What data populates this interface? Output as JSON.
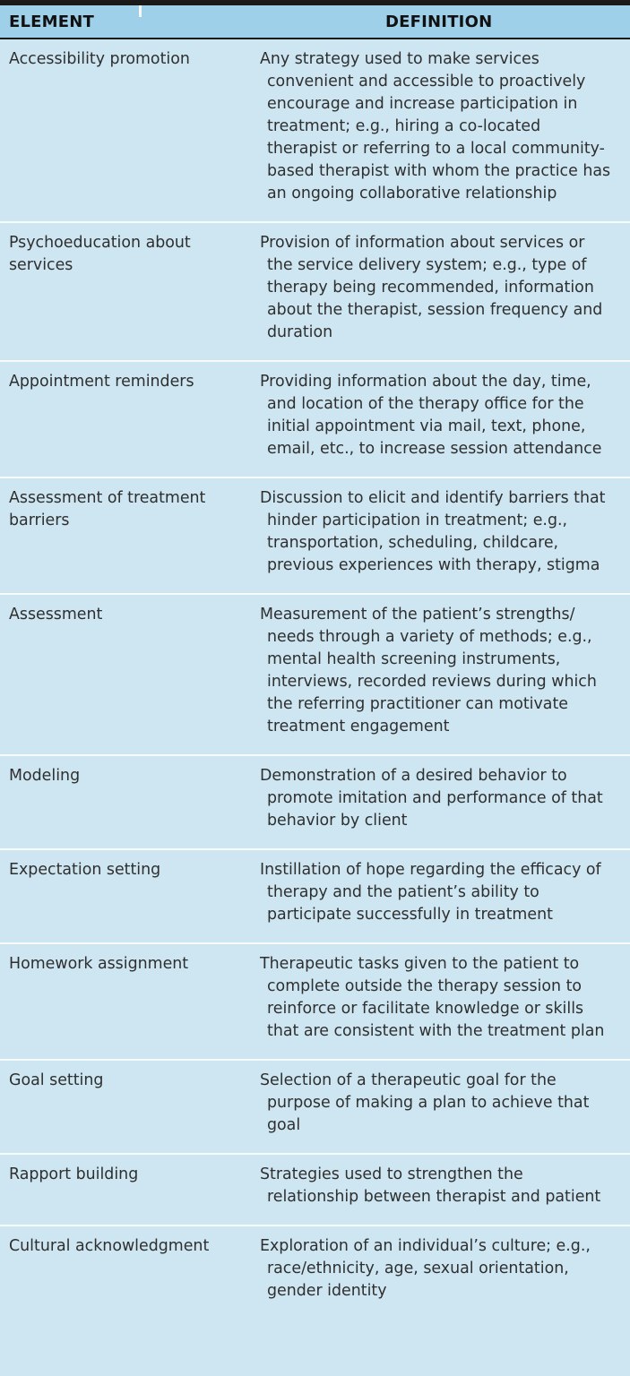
{
  "header": {
    "element": "ELEMENT",
    "definition": "DEFINITION"
  },
  "rows": [
    {
      "element": "Accessibility promotion",
      "definition": "Any strategy used to make services convenient and accessible to proactively encourage and increase participation in treatment; e.g., hiring a co-located therapist or referring to a local community-based therapist with whom the practice has an ongoing collaborative relationship"
    },
    {
      "element": "Psychoeducation about services",
      "definition": "Provision of information about services or the service delivery system; e.g., type of therapy being recommended, information about the therapist, session frequency and duration"
    },
    {
      "element": "Appointment reminders",
      "definition": "Providing information about the day, time, and location of the therapy office for the initial appointment via mail, text, phone, email, etc., to increase session attendance"
    },
    {
      "element": "Assessment of treatment barriers",
      "definition": "Discussion to elicit and identify barriers that hinder participation in treatment; e.g., transportation, scheduling, childcare, previous experiences with therapy, stigma"
    },
    {
      "element": "Assessment",
      "definition": "Measurement of the patient’s strengths/ needs through a variety of methods; e.g., mental health screening instruments, interviews, recorded reviews during which the referring practitioner can motivate treatment engagement"
    },
    {
      "element": "Modeling",
      "definition": "Demonstration of a desired behavior to promote imitation and performance of that behavior by client"
    },
    {
      "element": "Expectation setting",
      "definition": "Instillation of hope regarding the efficacy of therapy and the patient’s ability to participate successfully in treatment"
    },
    {
      "element": "Homework assignment",
      "definition": "Therapeutic tasks given to the patient to complete outside the therapy session to reinforce or facilitate knowledge or skills that are consistent with the treatment plan"
    },
    {
      "element": "Goal setting",
      "definition": "Selection of a therapeutic goal for the purpose of making a plan to achieve that goal"
    },
    {
      "element": "Rapport building",
      "definition": "Strategies used to strengthen the relationship between therapist and patient"
    },
    {
      "element": "Cultural acknowledgment",
      "definition": "Exploration of an individual’s culture; e.g., race/ethnicity, age, sexual orientation, gender identity"
    }
  ]
}
